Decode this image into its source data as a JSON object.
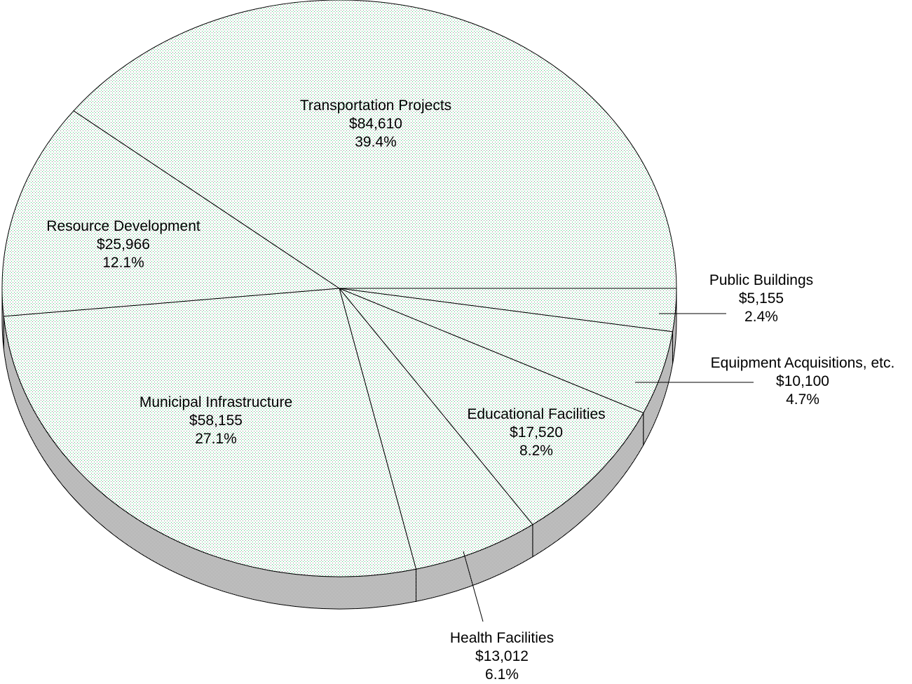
{
  "chart_data": {
    "type": "pie",
    "style": "3d",
    "start": "right, clockwise",
    "slices": [
      {
        "label": "Public Buildings",
        "value": 5155,
        "value_label": "$5,155",
        "percent": 2.4,
        "percent_label": "2.4%"
      },
      {
        "label": "Equipment Acquisitions, etc.",
        "value": 10100,
        "value_label": "$10,100",
        "percent": 4.7,
        "percent_label": "4.7%"
      },
      {
        "label": "Educational Facilities",
        "value": 17520,
        "value_label": "$17,520",
        "percent": 8.2,
        "percent_label": "8.2%"
      },
      {
        "label": "Health Facilities",
        "value": 13012,
        "value_label": "$13,012",
        "percent": 6.1,
        "percent_label": "6.1%"
      },
      {
        "label": "Municipal Infrastructure",
        "value": 58155,
        "value_label": "$58,155",
        "percent": 27.1,
        "percent_label": "27.1%"
      },
      {
        "label": "Resource Development",
        "value": 25966,
        "value_label": "$25,966",
        "percent": 12.1,
        "percent_label": "12.1%"
      },
      {
        "label": "Transportation Projects",
        "value": 84610,
        "value_label": "$84,610",
        "percent": 39.4,
        "percent_label": "39.4%"
      }
    ],
    "colors": {
      "top": "#e4ecdf",
      "side": "#b8b8b8",
      "edge": "#000000"
    }
  }
}
